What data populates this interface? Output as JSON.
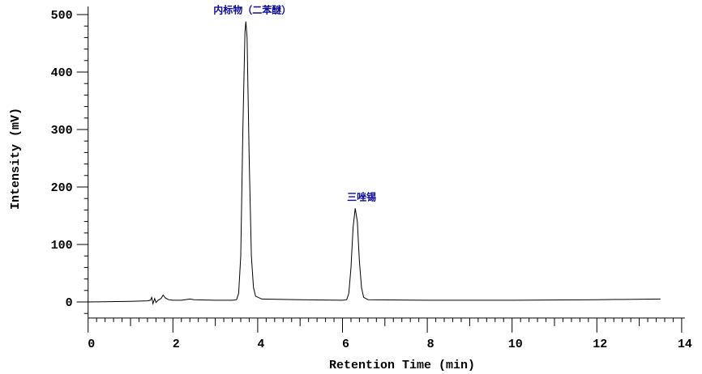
{
  "chart_data": {
    "type": "line",
    "title": "",
    "xlabel": "Retention Time (min)",
    "ylabel": "Intensity (mV)",
    "xlim": [
      0,
      14
    ],
    "ylim": [
      -28,
      514
    ],
    "x_ticks": [
      0,
      2,
      4,
      6,
      8,
      10,
      12,
      14
    ],
    "y_ticks": [
      0,
      100,
      200,
      300,
      400,
      500
    ],
    "grid": false,
    "annotation_color": "#0a0a9a",
    "line_color": "#000000",
    "series": [
      {
        "points": [
          [
            0,
            0
          ],
          [
            1.0,
            1
          ],
          [
            1.4,
            2
          ],
          [
            1.47,
            3
          ],
          [
            1.5,
            8
          ],
          [
            1.53,
            -3
          ],
          [
            1.57,
            6
          ],
          [
            1.6,
            -1
          ],
          [
            1.65,
            3
          ],
          [
            1.72,
            6
          ],
          [
            1.77,
            12
          ],
          [
            1.82,
            7
          ],
          [
            1.9,
            4
          ],
          [
            2.0,
            3
          ],
          [
            2.2,
            3
          ],
          [
            2.4,
            5
          ],
          [
            2.5,
            4
          ],
          [
            3.0,
            3
          ],
          [
            3.4,
            3
          ],
          [
            3.5,
            4
          ],
          [
            3.55,
            15
          ],
          [
            3.6,
            80
          ],
          [
            3.65,
            300
          ],
          [
            3.7,
            470
          ],
          [
            3.72,
            488
          ],
          [
            3.75,
            460
          ],
          [
            3.8,
            250
          ],
          [
            3.85,
            80
          ],
          [
            3.9,
            25
          ],
          [
            3.95,
            10
          ],
          [
            4.1,
            5
          ],
          [
            5,
            4
          ],
          [
            6.0,
            3
          ],
          [
            6.1,
            4
          ],
          [
            6.15,
            15
          ],
          [
            6.2,
            60
          ],
          [
            6.25,
            130
          ],
          [
            6.3,
            163
          ],
          [
            6.35,
            140
          ],
          [
            6.4,
            70
          ],
          [
            6.45,
            25
          ],
          [
            6.5,
            8
          ],
          [
            6.6,
            4
          ],
          [
            8,
            3
          ],
          [
            10,
            3
          ],
          [
            12,
            4
          ],
          [
            13.5,
            5
          ]
        ]
      }
    ],
    "annotations": [
      {
        "text": "内标物（二苯醚）",
        "x": 3.72,
        "y": 488
      },
      {
        "text": "三唑锡",
        "x": 6.3,
        "y": 163
      }
    ]
  }
}
